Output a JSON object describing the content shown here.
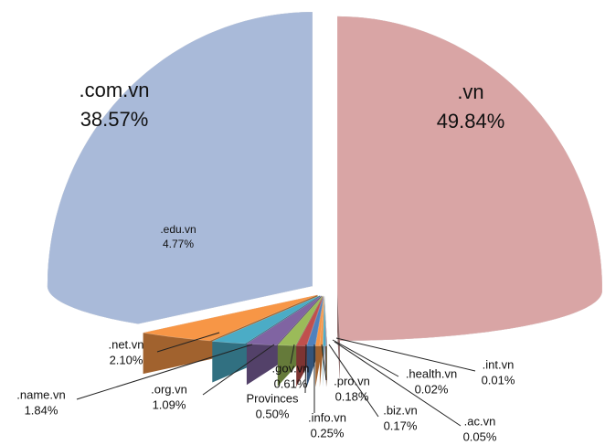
{
  "chart_data": {
    "type": "pie",
    "categories": [
      ".vn",
      ".int.vn",
      ".health.vn",
      ".ac.vn",
      ".biz.vn",
      ".pro.vn",
      ".info.vn",
      "Provinces",
      ".gov.vn",
      ".org.vn",
      ".name.vn",
      ".net.vn",
      ".edu.vn",
      ".com.vn"
    ],
    "values": [
      49.84,
      0.01,
      0.02,
      0.05,
      0.17,
      0.18,
      0.25,
      0.5,
      0.61,
      1.09,
      1.84,
      2.1,
      4.77,
      38.57
    ],
    "value_labels": [
      "49.84%",
      "0.01%",
      "0.02%",
      "0.05%",
      "0.17%",
      "0.18%",
      "0.25%",
      "0.50%",
      "0.61%",
      "1.09%",
      "1.84%",
      "2.10%",
      "4.77%",
      "38.57%"
    ],
    "colors": [
      "#d9a5a5",
      "#c0504d",
      "#9bbb59",
      "#8064a2",
      "#4bacc6",
      "#f79646",
      "#f79646",
      "#4f81bd",
      "#c0504d",
      "#9bbb59",
      "#8064a2",
      "#4bacc6",
      "#f79646",
      "#a9bad9"
    ]
  }
}
